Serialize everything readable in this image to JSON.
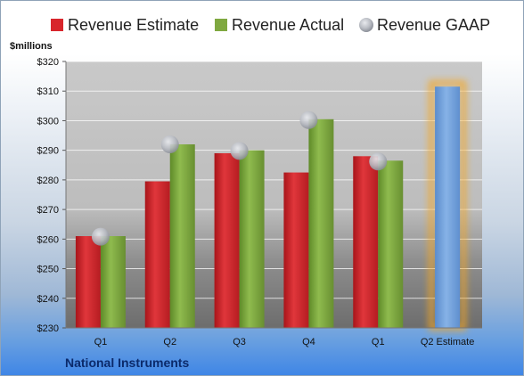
{
  "chart_data": {
    "type": "bar",
    "unit_label": "$millions",
    "categories": [
      "Q1",
      "Q2",
      "Q3",
      "Q4",
      "Q1",
      "Q2 Estimate"
    ],
    "series": [
      {
        "name": "Revenue Estimate",
        "color": "#d8262c",
        "values": [
          261,
          279.5,
          289,
          282.5,
          288,
          null
        ]
      },
      {
        "name": "Revenue Actual",
        "color": "#7fa840",
        "values": [
          261,
          292,
          290,
          300.5,
          286.5,
          null
        ]
      },
      {
        "name": "Revenue GAAP",
        "color": "#b8bcc4",
        "values": [
          260.8,
          292,
          289.8,
          300.2,
          286.2,
          null
        ]
      }
    ],
    "estimate_bar": {
      "category": "Q2 Estimate",
      "value": 311.5,
      "color": "#6f9fd8",
      "glow": "#f5a623"
    },
    "ylim": [
      230,
      320
    ],
    "yticks": [
      230,
      240,
      250,
      260,
      270,
      280,
      290,
      300,
      310,
      320
    ],
    "ytick_labels": [
      "$230",
      "$240",
      "$250",
      "$260",
      "$270",
      "$280",
      "$290",
      "$300",
      "$310",
      "$320"
    ],
    "grid": true,
    "legend_position": "top",
    "footer": "National Instruments"
  }
}
